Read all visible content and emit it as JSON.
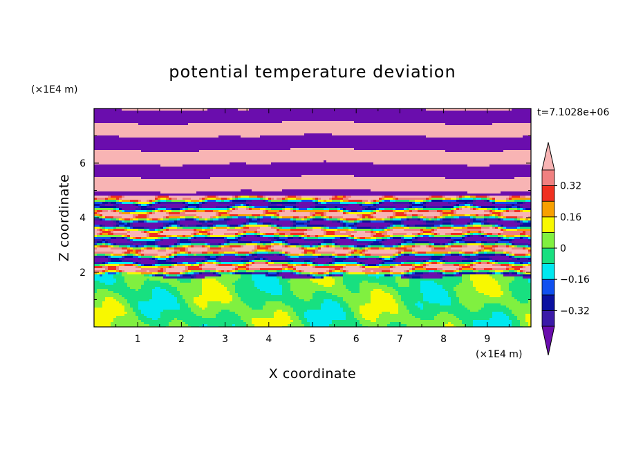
{
  "chart_data": {
    "type": "heatmap",
    "title": "potential temperature deviation",
    "xlabel": "X coordinate",
    "ylabel": "Z coordinate",
    "x_unit": "(×1E4 m)",
    "y_unit": "(×1E4 m)",
    "time_label": "t=7.1028e+06",
    "xlim": [
      0,
      10
    ],
    "ylim": [
      0,
      8
    ],
    "x_ticks": [
      1,
      2,
      3,
      4,
      5,
      6,
      7,
      8,
      9
    ],
    "y_ticks": [
      2,
      4,
      6
    ],
    "colorbar": {
      "levels": [
        -0.4,
        -0.32,
        -0.24,
        -0.16,
        -0.08,
        0,
        0.08,
        0.16,
        0.24,
        0.32,
        0.4
      ],
      "labeled_levels": [
        0.32,
        0.16,
        0,
        -0.16,
        -0.32
      ],
      "labels": [
        "0.32",
        "0.16",
        "0",
        "−0.16",
        "−0.32"
      ],
      "colors": [
        "#6a0dad",
        "#3b1aa8",
        "#0a10a0",
        "#1050f0",
        "#00e8f0",
        "#18e080",
        "#80f040",
        "#f8f800",
        "#f8a000",
        "#f03020",
        "#f08080",
        "#f8b4b4"
      ],
      "extend": "both"
    },
    "regions": [
      {
        "z_range": [
          0,
          1.9
        ],
        "description_values": [
          -0.08,
          0.08
        ],
        "pattern": "mixed layer"
      },
      {
        "z_range": [
          1.9,
          4.8
        ],
        "description_values": [
          -0.4,
          0.4
        ],
        "pattern": "turbulent bands"
      },
      {
        "z_range": [
          4.8,
          8
        ],
        "description_values": [
          -0.4,
          0.4
        ],
        "pattern": "alternating layers"
      }
    ]
  }
}
